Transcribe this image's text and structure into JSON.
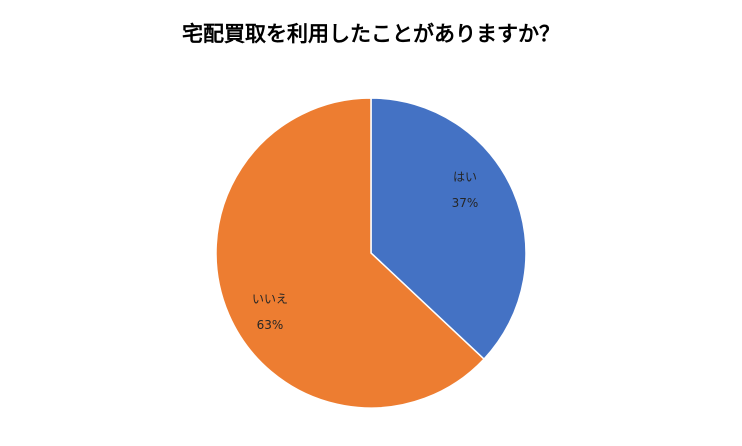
{
  "chart_data": {
    "type": "pie",
    "title": "宅配買取を利用したことがありますか？",
    "slices": [
      {
        "label": "はい",
        "value": 37,
        "value_label": "37%",
        "color": "#4472C4"
      },
      {
        "label": "いいえ",
        "value": 63,
        "value_label": "63%",
        "color": "#ED7D31"
      }
    ],
    "start": "12 o'clock",
    "direction": "clockwise",
    "data_labels": "inside slices (category name and percentage)",
    "legend": "none"
  }
}
